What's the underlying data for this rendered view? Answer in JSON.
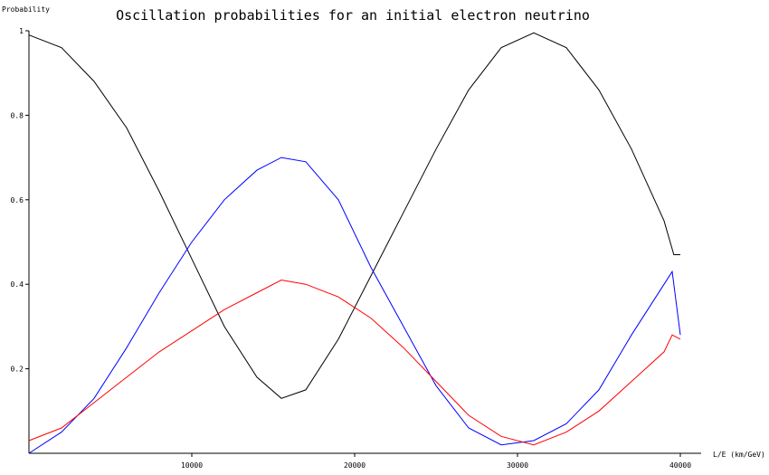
{
  "chart_data": {
    "type": "line",
    "title": "Oscillation probabilities for an initial electron neutrino",
    "xlabel": "L/E (km/GeV)",
    "ylabel": "Probability",
    "xlim": [
      0,
      40000
    ],
    "ylim": [
      0,
      1
    ],
    "x_ticks": [
      10000,
      20000,
      30000,
      40000
    ],
    "y_ticks": [
      0.2,
      0.4,
      0.6,
      0.8,
      1
    ],
    "x_tick_labels": [
      "10000",
      "20000",
      "30000",
      "40000"
    ],
    "y_tick_labels": [
      "0.2",
      "0.4",
      "0.6",
      "0.8",
      "1"
    ],
    "grid": false,
    "legend": "none",
    "series": [
      {
        "color": "#000000",
        "x": [
          0,
          2000,
          4000,
          6000,
          8000,
          10000,
          12000,
          14000,
          15500,
          17000,
          19000,
          21000,
          23000,
          25000,
          27000,
          29000,
          31000,
          33000,
          35000,
          37000,
          39000,
          39600,
          40000
        ],
        "y": [
          0.99,
          0.96,
          0.88,
          0.77,
          0.62,
          0.46,
          0.3,
          0.18,
          0.13,
          0.15,
          0.27,
          0.42,
          0.57,
          0.72,
          0.86,
          0.96,
          0.995,
          0.96,
          0.86,
          0.72,
          0.55,
          0.47,
          0.47
        ]
      },
      {
        "color": "#0000ff",
        "x": [
          0,
          2000,
          4000,
          6000,
          8000,
          10000,
          12000,
          14000,
          15500,
          17000,
          19000,
          21000,
          23000,
          25000,
          27000,
          29000,
          31000,
          33000,
          35000,
          37000,
          39000,
          39500,
          40000
        ],
        "y": [
          0.0,
          0.05,
          0.13,
          0.25,
          0.38,
          0.5,
          0.6,
          0.67,
          0.7,
          0.69,
          0.6,
          0.44,
          0.3,
          0.16,
          0.06,
          0.02,
          0.03,
          0.07,
          0.15,
          0.28,
          0.4,
          0.43,
          0.28
        ]
      },
      {
        "color": "#ff0000",
        "x": [
          0,
          2000,
          4000,
          6000,
          8000,
          10000,
          12000,
          14000,
          15500,
          17000,
          19000,
          21000,
          23000,
          25000,
          27000,
          29000,
          31000,
          33000,
          35000,
          37000,
          39000,
          39500,
          40000
        ],
        "y": [
          0.03,
          0.06,
          0.12,
          0.18,
          0.24,
          0.29,
          0.34,
          0.38,
          0.41,
          0.4,
          0.37,
          0.32,
          0.25,
          0.17,
          0.09,
          0.04,
          0.02,
          0.05,
          0.1,
          0.17,
          0.24,
          0.28,
          0.27
        ]
      }
    ]
  }
}
